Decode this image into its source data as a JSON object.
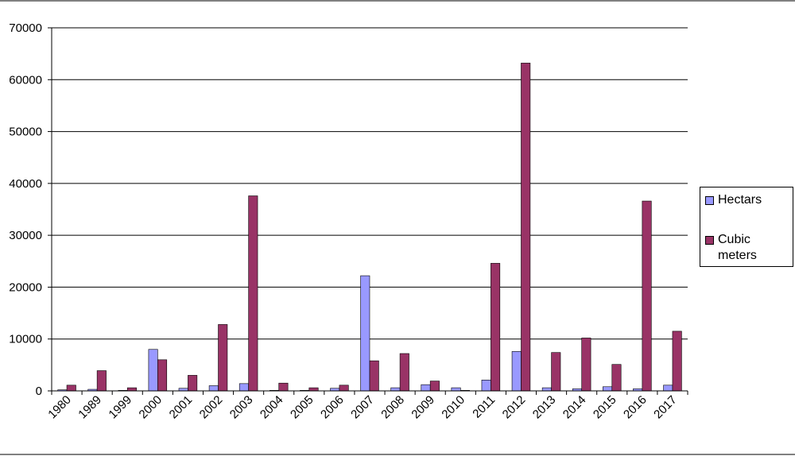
{
  "chart_data": {
    "type": "bar",
    "categories": [
      "1980",
      "1989",
      "1999",
      "2000",
      "2001",
      "2002",
      "2003",
      "2004",
      "2005",
      "2006",
      "2007",
      "2008",
      "2009",
      "2010",
      "2011",
      "2012",
      "2013",
      "2014",
      "2015",
      "2016",
      "2017"
    ],
    "series": [
      {
        "name": "Hectars",
        "color": "#9999ff",
        "values": [
          200,
          300,
          100,
          8000,
          500,
          1000,
          1400,
          100,
          100,
          500,
          22200,
          600,
          1200,
          600,
          2100,
          7600,
          600,
          400,
          800,
          400,
          1100
        ]
      },
      {
        "name": "Cubic meters",
        "color": "#993366",
        "values": [
          1100,
          3900,
          600,
          6000,
          3000,
          12800,
          37600,
          1500,
          600,
          1100,
          5800,
          7200,
          1900,
          100,
          24600,
          63200,
          7400,
          10200,
          5100,
          36600,
          11500
        ]
      }
    ],
    "ylim": [
      0,
      70000
    ],
    "yticks": [
      0,
      10000,
      20000,
      30000,
      40000,
      50000,
      60000,
      70000
    ],
    "grid": true,
    "legend": "right"
  }
}
